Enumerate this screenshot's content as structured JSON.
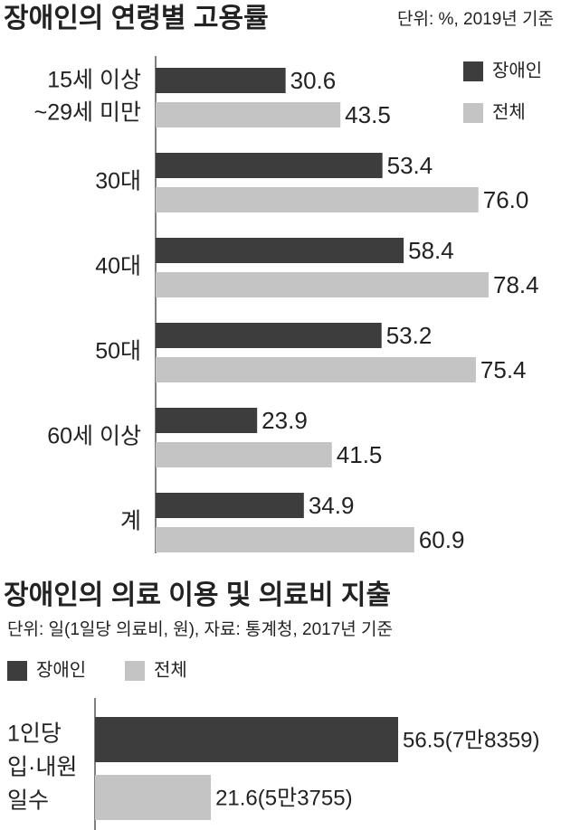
{
  "chart_data": [
    {
      "type": "hbar",
      "title": "장애인의 연령별 고용률",
      "subtitle": "단위: %, 2019년 기준",
      "categories": [
        [
          "15세 이상",
          "~29세 미만"
        ],
        [
          "30대"
        ],
        [
          "40대"
        ],
        [
          "50대"
        ],
        [
          "60세 이상"
        ],
        [
          "계"
        ]
      ],
      "series": [
        {
          "name": "장애인",
          "color": "#3d3d3d",
          "values": [
            30.6,
            53.4,
            58.4,
            53.2,
            23.9,
            34.9
          ],
          "value_labels": [
            "30.6",
            "53.4",
            "58.4",
            "53.2",
            "23.9",
            "34.9"
          ]
        },
        {
          "name": "전체",
          "color": "#c4c4c4",
          "values": [
            43.5,
            76.0,
            78.4,
            75.4,
            41.5,
            60.9
          ],
          "value_labels": [
            "43.5",
            "76.0",
            "78.4",
            "75.4",
            "41.5",
            "60.9"
          ]
        }
      ],
      "legend": "top-right"
    },
    {
      "type": "hbar",
      "title": "장애인의 의료 이용 및 의료비 지출",
      "subtitle": "단위: 일(1일당 의료비, 원), 자료: 통계청, 2017년 기준",
      "categories": [
        [
          "1인당",
          "입·내원",
          "일수"
        ]
      ],
      "series": [
        {
          "name": "장애인",
          "color": "#3d3d3d",
          "values": [
            56.5
          ],
          "value_labels": [
            "56.5(7만8359)"
          ]
        },
        {
          "name": "전체",
          "color": "#c4c4c4",
          "values": [
            21.6
          ],
          "value_labels": [
            "21.6(5만3755)"
          ]
        }
      ],
      "legend": "top-left"
    }
  ]
}
